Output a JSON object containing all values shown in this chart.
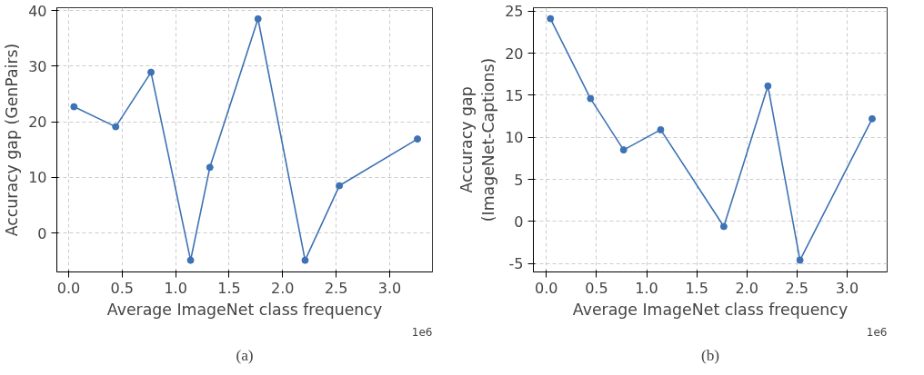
{
  "chart_data": [
    {
      "type": "line",
      "xlabel": "Average ImageNet class frequency",
      "ylabel": "Accuracy gap (GenPairs)",
      "annotations": [
        "1e6",
        "(a)"
      ],
      "x": [
        0.05,
        0.44,
        0.77,
        1.14,
        1.32,
        1.77,
        2.21,
        2.53,
        3.26
      ],
      "series": [
        {
          "color": "#3d72b4",
          "values": [
            22.7,
            19.1,
            28.9,
            -4.9,
            11.8,
            38.5,
            -4.9,
            8.5,
            16.9
          ]
        }
      ],
      "xlim": [
        -0.11,
        3.4
      ],
      "ylim": [
        -7,
        40.5
      ],
      "xticks": [
        {
          "value": 0,
          "label": "0.0"
        },
        {
          "value": 0.5,
          "label": "0.5"
        },
        {
          "value": 1,
          "label": "1.0"
        },
        {
          "value": 1.5,
          "label": "1.5"
        },
        {
          "value": 2,
          "label": "2.0"
        },
        {
          "value": 2.5,
          "label": "2.5"
        },
        {
          "value": 3,
          "label": "3.0"
        }
      ],
      "yticks": [
        0,
        10,
        20,
        30,
        40
      ],
      "grid": true,
      "marker": "circle",
      "line_style": "solid"
    },
    {
      "type": "line",
      "xlabel": "Average ImageNet class frequency",
      "ylabel": "Accuracy gap\n(ImageNet-Captions)",
      "annotations": [
        "1e6",
        "(b)"
      ],
      "x": [
        0.04,
        0.44,
        0.77,
        1.14,
        1.77,
        2.21,
        2.53,
        3.25
      ],
      "series": [
        {
          "color": "#3d72b4",
          "values": [
            24.1,
            14.6,
            8.5,
            10.9,
            -0.6,
            16.1,
            -4.6,
            12.2
          ]
        }
      ],
      "xlim": [
        -0.13,
        3.4
      ],
      "ylim": [
        -6,
        25.4
      ],
      "xticks": [
        {
          "value": 0,
          "label": "0.0"
        },
        {
          "value": 0.5,
          "label": "0.5"
        },
        {
          "value": 1,
          "label": "1.0"
        },
        {
          "value": 1.5,
          "label": "1.5"
        },
        {
          "value": 2,
          "label": "2.0"
        },
        {
          "value": 2.5,
          "label": "2.5"
        },
        {
          "value": 3,
          "label": "3.0"
        }
      ],
      "yticks": [
        -5,
        0,
        5,
        10,
        15,
        20,
        25
      ],
      "grid": true,
      "marker": "circle",
      "line_style": "solid"
    }
  ]
}
